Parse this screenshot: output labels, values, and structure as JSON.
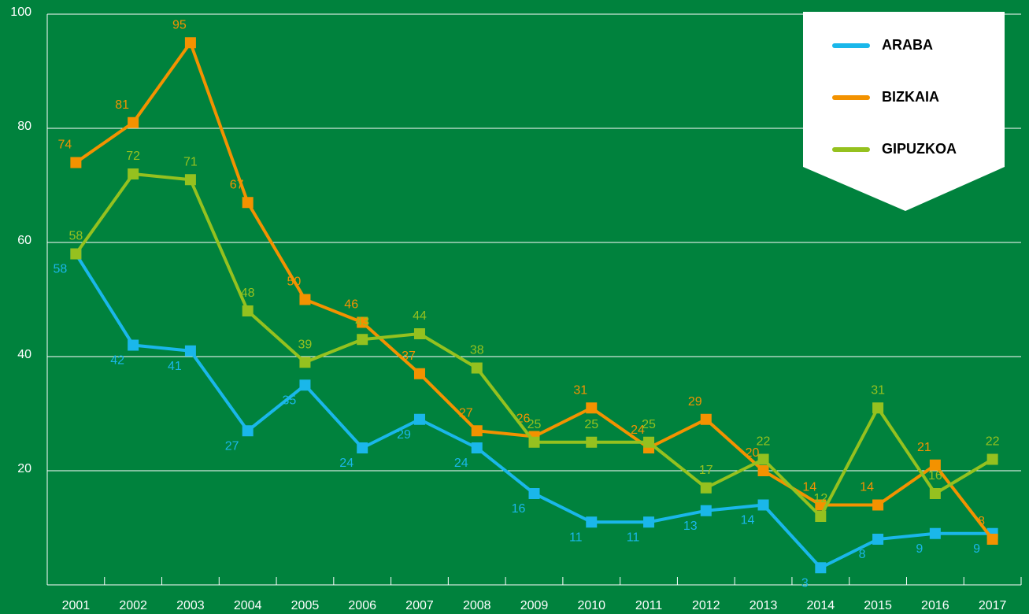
{
  "chart_data": {
    "type": "line",
    "categories": [
      "2001",
      "2002",
      "2003",
      "2004",
      "2005",
      "2006",
      "2007",
      "2008",
      "2009",
      "2010",
      "2011",
      "2012",
      "2013",
      "2014",
      "2015",
      "2016",
      "2017"
    ],
    "series": [
      {
        "name": "ARABA",
        "color": "#1ab7ea",
        "values": [
          58,
          42,
          41,
          27,
          35,
          24,
          29,
          24,
          16,
          11,
          11,
          13,
          14,
          3,
          8,
          9,
          9
        ]
      },
      {
        "name": "BIZKAIA",
        "color": "#f39200",
        "values": [
          74,
          81,
          95,
          67,
          50,
          46,
          37,
          27,
          26,
          31,
          24,
          29,
          20,
          14,
          14,
          21,
          8
        ]
      },
      {
        "name": "GIPUZKOA",
        "color": "#95c11f",
        "values": [
          58,
          72,
          71,
          48,
          39,
          43,
          44,
          38,
          25,
          25,
          25,
          17,
          22,
          12,
          31,
          16,
          22
        ]
      }
    ],
    "ylim": [
      0,
      100
    ],
    "yticks": [
      20,
      40,
      60,
      80,
      100
    ],
    "grid": true,
    "legend": "top-right"
  }
}
